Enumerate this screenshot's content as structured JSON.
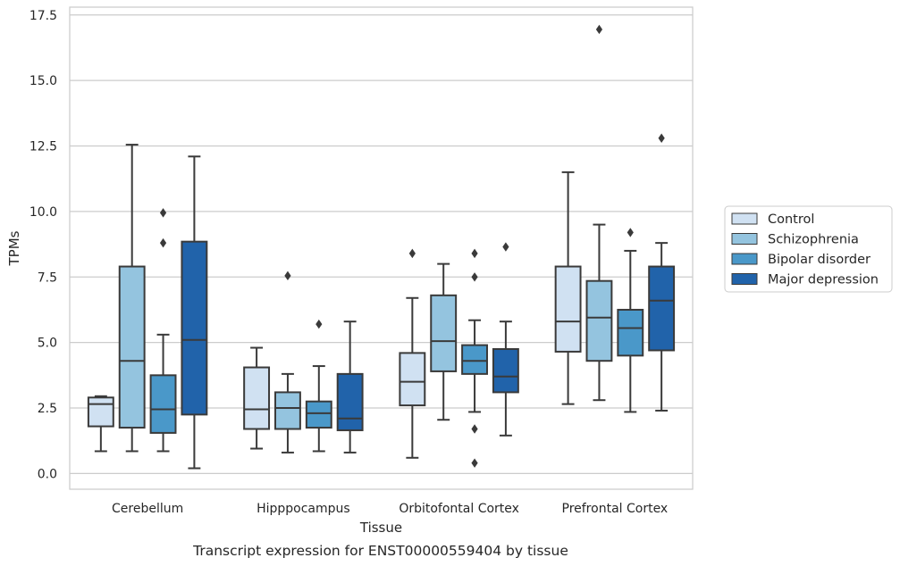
{
  "caption": "Transcript expression for ENST00000559404 by tissue",
  "chart_data": {
    "type": "boxplot",
    "title": "",
    "xlabel": "Tissue",
    "ylabel": "TPMs",
    "ylim": [
      -0.6,
      17.8
    ],
    "yticks": [
      0.0,
      2.5,
      5.0,
      7.5,
      10.0,
      12.5,
      15.0,
      17.5
    ],
    "ytick_labels": [
      "0.0",
      "2.5",
      "5.0",
      "7.5",
      "10.0",
      "12.5",
      "15.0",
      "17.5"
    ],
    "grid": "horizontal",
    "legend_position": "right",
    "categories": [
      "Cerebellum",
      "Hipppocampus",
      "Orbitofontal Cortex",
      "Prefrontal Cortex"
    ],
    "series": [
      {
        "name": "Control",
        "color": "#d0e1f2",
        "boxes": [
          {
            "whislo": 0.85,
            "q1": 1.8,
            "med": 2.65,
            "q3": 2.9,
            "whishi": 2.95,
            "fliers": []
          },
          {
            "whislo": 0.95,
            "q1": 1.7,
            "med": 2.45,
            "q3": 4.05,
            "whishi": 4.8,
            "fliers": []
          },
          {
            "whislo": 0.6,
            "q1": 2.6,
            "med": 3.5,
            "q3": 4.6,
            "whishi": 6.7,
            "fliers": [
              8.4
            ]
          },
          {
            "whislo": 2.65,
            "q1": 4.65,
            "med": 5.8,
            "q3": 7.9,
            "whishi": 11.5,
            "fliers": []
          }
        ]
      },
      {
        "name": "Schizophrenia",
        "color": "#94c4df",
        "boxes": [
          {
            "whislo": 0.85,
            "q1": 1.75,
            "med": 4.3,
            "q3": 7.9,
            "whishi": 12.55,
            "fliers": []
          },
          {
            "whislo": 0.8,
            "q1": 1.7,
            "med": 2.5,
            "q3": 3.1,
            "whishi": 3.8,
            "fliers": [
              7.55
            ]
          },
          {
            "whislo": 2.05,
            "q1": 3.9,
            "med": 5.05,
            "q3": 6.8,
            "whishi": 8.0,
            "fliers": []
          },
          {
            "whislo": 2.8,
            "q1": 4.3,
            "med": 5.95,
            "q3": 7.35,
            "whishi": 9.5,
            "fliers": [
              16.95
            ]
          }
        ]
      },
      {
        "name": "Bipolar disorder",
        "color": "#4a98c9",
        "boxes": [
          {
            "whislo": 0.85,
            "q1": 1.55,
            "med": 2.45,
            "q3": 3.75,
            "whishi": 5.3,
            "fliers": [
              8.8,
              9.95
            ]
          },
          {
            "whislo": 0.85,
            "q1": 1.75,
            "med": 2.3,
            "q3": 2.75,
            "whishi": 4.1,
            "fliers": [
              5.7
            ]
          },
          {
            "whislo": 2.35,
            "q1": 3.8,
            "med": 4.3,
            "q3": 4.9,
            "whishi": 5.85,
            "fliers": [
              0.4,
              1.7,
              7.5,
              8.4
            ]
          },
          {
            "whislo": 2.35,
            "q1": 4.5,
            "med": 5.55,
            "q3": 6.25,
            "whishi": 8.5,
            "fliers": [
              9.2
            ]
          }
        ]
      },
      {
        "name": "Major depression",
        "color": "#2163aa",
        "boxes": [
          {
            "whislo": 0.2,
            "q1": 2.25,
            "med": 5.1,
            "q3": 8.85,
            "whishi": 12.1,
            "fliers": []
          },
          {
            "whislo": 0.8,
            "q1": 1.65,
            "med": 2.1,
            "q3": 3.8,
            "whishi": 5.8,
            "fliers": []
          },
          {
            "whislo": 1.45,
            "q1": 3.1,
            "med": 3.7,
            "q3": 4.75,
            "whishi": 5.8,
            "fliers": [
              8.65
            ]
          },
          {
            "whislo": 2.4,
            "q1": 4.7,
            "med": 6.6,
            "q3": 7.9,
            "whishi": 8.8,
            "fliers": [
              12.8
            ]
          }
        ]
      }
    ]
  }
}
